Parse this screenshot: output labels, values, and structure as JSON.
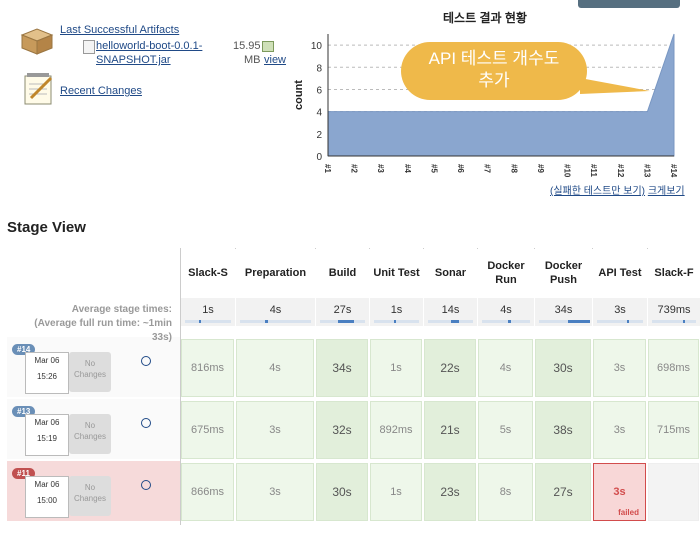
{
  "artifacts": {
    "title": "Last Successful Artifacts",
    "file_line1": "helloworld-boot-0.0.1-",
    "file_line2": "SNAPSHOT.jar",
    "size_num": "15.95",
    "size_unit": "MB",
    "view_link": "view"
  },
  "recent_changes": "Recent Changes",
  "chart": {
    "callout": "API 테스트 개수도 추가",
    "callout_l1": "API 테스트 개수도",
    "callout_l2": "추가",
    "link_failed": "(실패한 테스트만 보기)",
    "link_large": "크게보기"
  },
  "chart_data": {
    "type": "area",
    "title": "테스트 결과 현황",
    "xlabel": "",
    "ylabel": "count",
    "categories": [
      "#1",
      "#2",
      "#3",
      "#4",
      "#5",
      "#6",
      "#7",
      "#8",
      "#9",
      "#10",
      "#11",
      "#12",
      "#13",
      "#14"
    ],
    "series": [
      {
        "name": "passed",
        "values": [
          4,
          4,
          4,
          4,
          4,
          4,
          4,
          4,
          4,
          4,
          4,
          4,
          4,
          11
        ]
      }
    ],
    "ylim": [
      0,
      11
    ],
    "yticks": [
      0,
      2,
      4,
      6,
      8,
      10
    ],
    "grid": true,
    "color": "#8aa6cf"
  },
  "stage_view": {
    "title": "Stage View",
    "avg_label_1": "Average stage times:",
    "avg_label_2": "(Average full run time: ~1min",
    "avg_label_3": "33s)",
    "stages": [
      {
        "name": "Slack-S",
        "avg": "1s",
        "fill": 0.02
      },
      {
        "name": "Preparation",
        "avg": "4s",
        "fill": 0.05
      },
      {
        "name": "Build",
        "avg": "27s",
        "fill": 0.35
      },
      {
        "name": "Unit Test",
        "avg": "1s",
        "fill": 0.02
      },
      {
        "name": "Sonar",
        "avg": "14s",
        "fill": 0.18
      },
      {
        "name": "Docker Run",
        "avg": "4s",
        "fill": 0.05
      },
      {
        "name": "Docker Push",
        "avg": "34s",
        "fill": 0.44
      },
      {
        "name": "API Test",
        "avg": "3s",
        "fill": 0.04
      },
      {
        "name": "Slack-F",
        "avg": "739ms",
        "fill": 0.01
      }
    ],
    "builds": [
      {
        "id": "#14",
        "date": "Mar 06",
        "time": "15:26",
        "changes": "No Changes",
        "failed": false,
        "cells": [
          "816ms",
          "4s",
          "34s",
          "1s",
          "22s",
          "4s",
          "30s",
          "3s",
          "698ms"
        ]
      },
      {
        "id": "#13",
        "date": "Mar 06",
        "time": "15:19",
        "changes": "No Changes",
        "failed": false,
        "cells": [
          "675ms",
          "3s",
          "32s",
          "892ms",
          "21s",
          "5s",
          "38s",
          "3s",
          "715ms"
        ]
      },
      {
        "id": "#11",
        "date": "Mar 06",
        "time": "15:00",
        "changes": "No Changes",
        "failed": true,
        "cells": [
          "866ms",
          "3s",
          "30s",
          "1s",
          "23s",
          "8s",
          "27s",
          "3s",
          ""
        ]
      }
    ],
    "failed_label": "failed"
  }
}
